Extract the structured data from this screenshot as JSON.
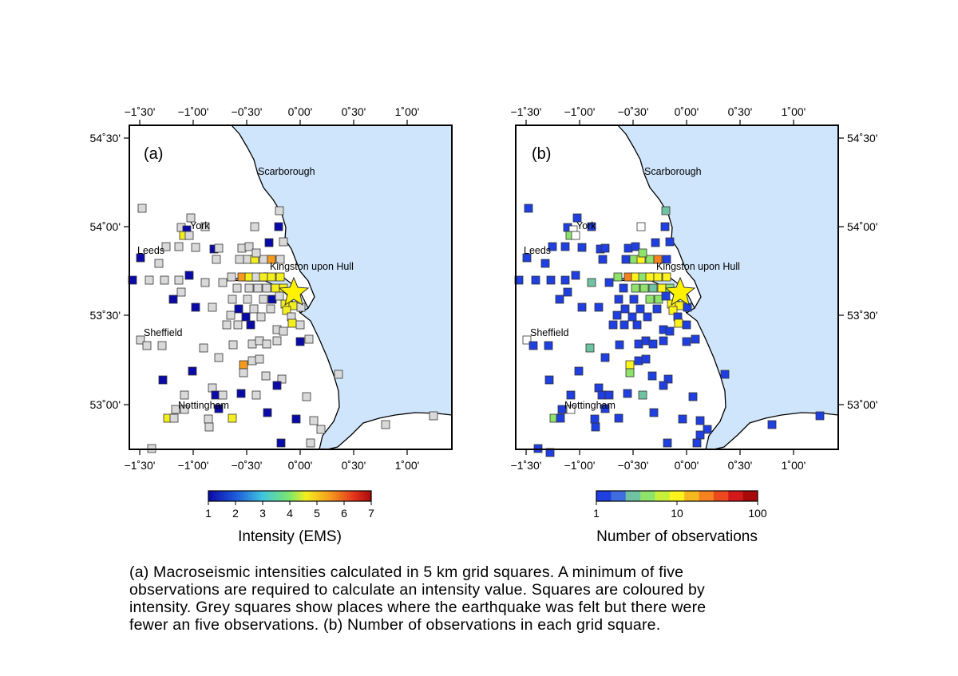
{
  "figure": {
    "map_a": {
      "panel_label": "(a)",
      "top_ticks": [
        "−1˚30'",
        "−1˚00'",
        "−0˚30'",
        "0˚00'",
        "0˚30'",
        "1˚00'"
      ],
      "bottom_ticks": [
        "−1˚30'",
        "−1˚00'",
        "−0˚30'",
        "0˚00'",
        "0˚30'",
        "1˚00'"
      ],
      "left_ticks": [
        "54˚30'",
        "54˚00'",
        "53˚30'",
        "53˚00'"
      ],
      "colorbar_ticks": [
        "1",
        "2",
        "3",
        "4",
        "5",
        "6",
        "7"
      ],
      "colorbar_title": "Intensity (EMS)"
    },
    "map_b": {
      "panel_label": "(b)",
      "top_ticks": [
        "−1˚30'",
        "−1˚00'",
        "−0˚30'",
        "0˚00'",
        "0˚30'",
        "1˚00'"
      ],
      "bottom_ticks": [
        "−1˚30'",
        "−1˚00'",
        "−0˚30'",
        "0˚00'",
        "0˚30'",
        "1˚00'"
      ],
      "right_ticks": [
        "54˚30'",
        "54˚00'",
        "53˚30'",
        "53˚00'"
      ],
      "colorbar_ticks": [
        "1",
        "10",
        "100"
      ],
      "colorbar_title": "Number of observations"
    },
    "places": [
      "Scarborough",
      "York",
      "Leeds",
      "Kingston upon Hull",
      "Sheffield",
      "Nottingham"
    ],
    "colors": {
      "sea": "#cfe5fb",
      "land": "#ffffff",
      "felt_grey": "#d9d9d9",
      "epicentre_star": "#fff200",
      "intensity_scale": [
        "#0a0aa8",
        "#1e5bdc",
        "#3ec4e0",
        "#7ee86c",
        "#f5ee1e",
        "#f59a1e",
        "#e2301a",
        "#a80a0a"
      ],
      "observation_scale": [
        "#1f3fe0",
        "#3f6de0",
        "#6fc3a0",
        "#8ee36a",
        "#c8f03a",
        "#fff31e",
        "#f5b81e",
        "#f5821e",
        "#ec4a1e",
        "#d21a1a",
        "#a80a0a"
      ]
    }
  },
  "caption": {
    "lines": [
      "(a) Macroseismic intensities calculated in 5 km grid squares.  A minimum of five",
      "observations are required to calculate an intensity value.  Squares are coloured by",
      "intensity.  Grey squares show places where the earthquake was felt but there were",
      "fewer an five observations. (b) Number of observations in each grid square."
    ]
  }
}
